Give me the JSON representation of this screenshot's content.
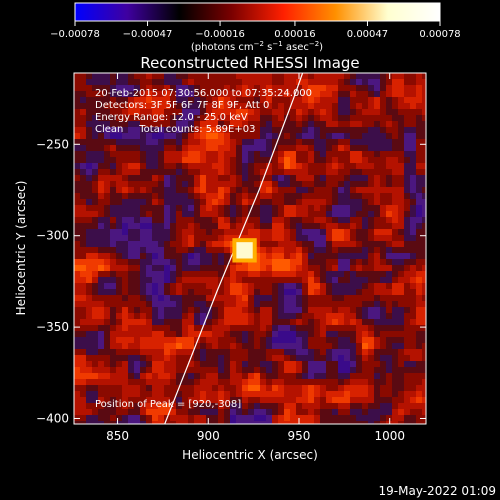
{
  "chart_data": {
    "type": "heatmap",
    "title": "Reconstructed RHESSI Image",
    "xlabel": "Heliocentric X (arcsec)",
    "ylabel": "Heliocentric Y (arcsec)",
    "xlim": [
      826,
      1020
    ],
    "ylim": [
      -403,
      -211
    ],
    "x_ticks": [
      850,
      900,
      950,
      1000
    ],
    "x_tick_labels": [
      "850",
      "900",
      "950",
      "1000"
    ],
    "y_ticks": [
      -250,
      -300,
      -350,
      -400
    ],
    "y_tick_labels": [
      "−250",
      "−300",
      "−350",
      "−400"
    ],
    "colorbar": {
      "range": [
        -0.00078,
        0.00078
      ],
      "ticks": [
        -0.00078,
        -0.00047,
        -0.00016,
        0.00016,
        0.00047,
        0.00078
      ],
      "tick_labels": [
        "−0.00078",
        "−0.00047",
        "−0.00016",
        "0.00016",
        "0.00047",
        "0.00078"
      ],
      "unit_prefix": "(photons cm",
      "unit_sup1": "−2",
      "unit_mid": " s",
      "unit_sup2": "−1",
      "unit_mid2": " asec",
      "unit_sup3": "−2",
      "unit_suffix": ")",
      "colors": [
        "#0000ff",
        "#3f00a0",
        "#000000",
        "#7a0000",
        "#ff2000",
        "#ff9000",
        "#ffffd0",
        "#ffffff"
      ]
    },
    "annotations": [
      "20-Feb-2015 07:30:56.000 to 07:35:24.000",
      "Detectors: 3F 5F 6F 7F 8F 9F, Att 0",
      "Energy Range: 12.0 - 25.0 keV",
      "Clean     Total counts: 5.89E+03"
    ],
    "peak_label": "Position of Peak = [920,-308]",
    "peak": {
      "x": 920,
      "y": -308,
      "width_arcsec": 9
    },
    "limb_points": [
      [
        876,
        -403
      ],
      [
        905,
        -330
      ],
      [
        928,
        -275
      ],
      [
        947,
        -225
      ],
      [
        952,
        -211
      ]
    ]
  },
  "footer": {
    "timestamp": "19-May-2022 01:09"
  }
}
